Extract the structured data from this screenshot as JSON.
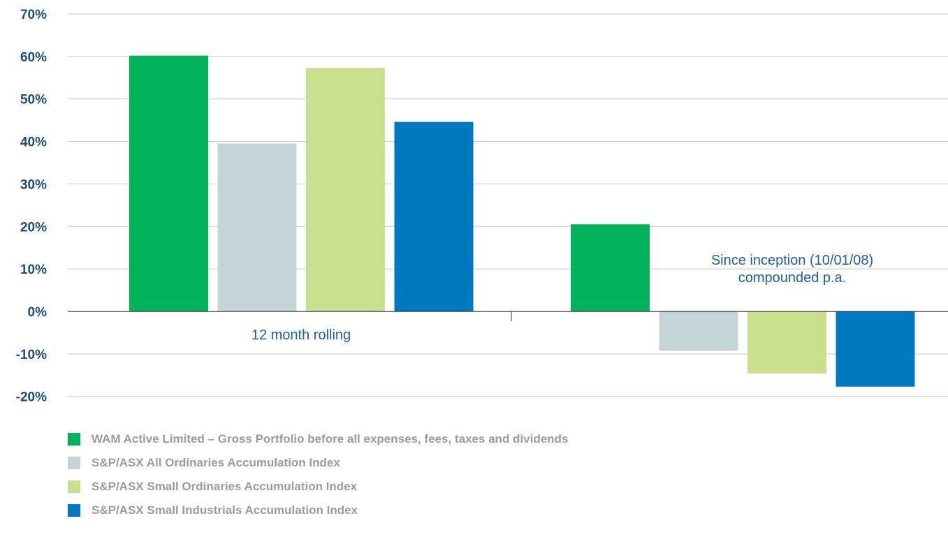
{
  "chart_data": {
    "type": "bar",
    "categories": [
      "12 month rolling",
      "Since inception (10/01/08) compounded p.a."
    ],
    "category_label_lines": [
      [
        "12 month rolling"
      ],
      [
        "Since inception (10/01/08)",
        "compounded p.a."
      ]
    ],
    "series": [
      {
        "name": "WAM Active Limited – Gross Portfolio before all expenses, fees, taxes and dividends",
        "values": [
          60.2,
          20.5
        ],
        "color": "#00b259"
      },
      {
        "name": "S&P/ASX All Ordinaries Accumulation Index",
        "values": [
          39.5,
          -9.2
        ],
        "color": "#c4d4d6"
      },
      {
        "name": "S&P/ASX Small Ordinaries Accumulation Index",
        "values": [
          57.3,
          -14.6
        ],
        "color": "#c8e08e"
      },
      {
        "name": "S&P/ASX Small Industrials Accumulation Index",
        "values": [
          44.6,
          -17.7
        ],
        "color": "#0079c1"
      }
    ],
    "y_ticks": [
      "70%",
      "60%",
      "50%",
      "40%",
      "30%",
      "20%",
      "10%",
      "0%",
      "-10%",
      "-20%"
    ],
    "ylim": [
      -20,
      70
    ],
    "grid": true,
    "legend_position": "bottom-left"
  }
}
